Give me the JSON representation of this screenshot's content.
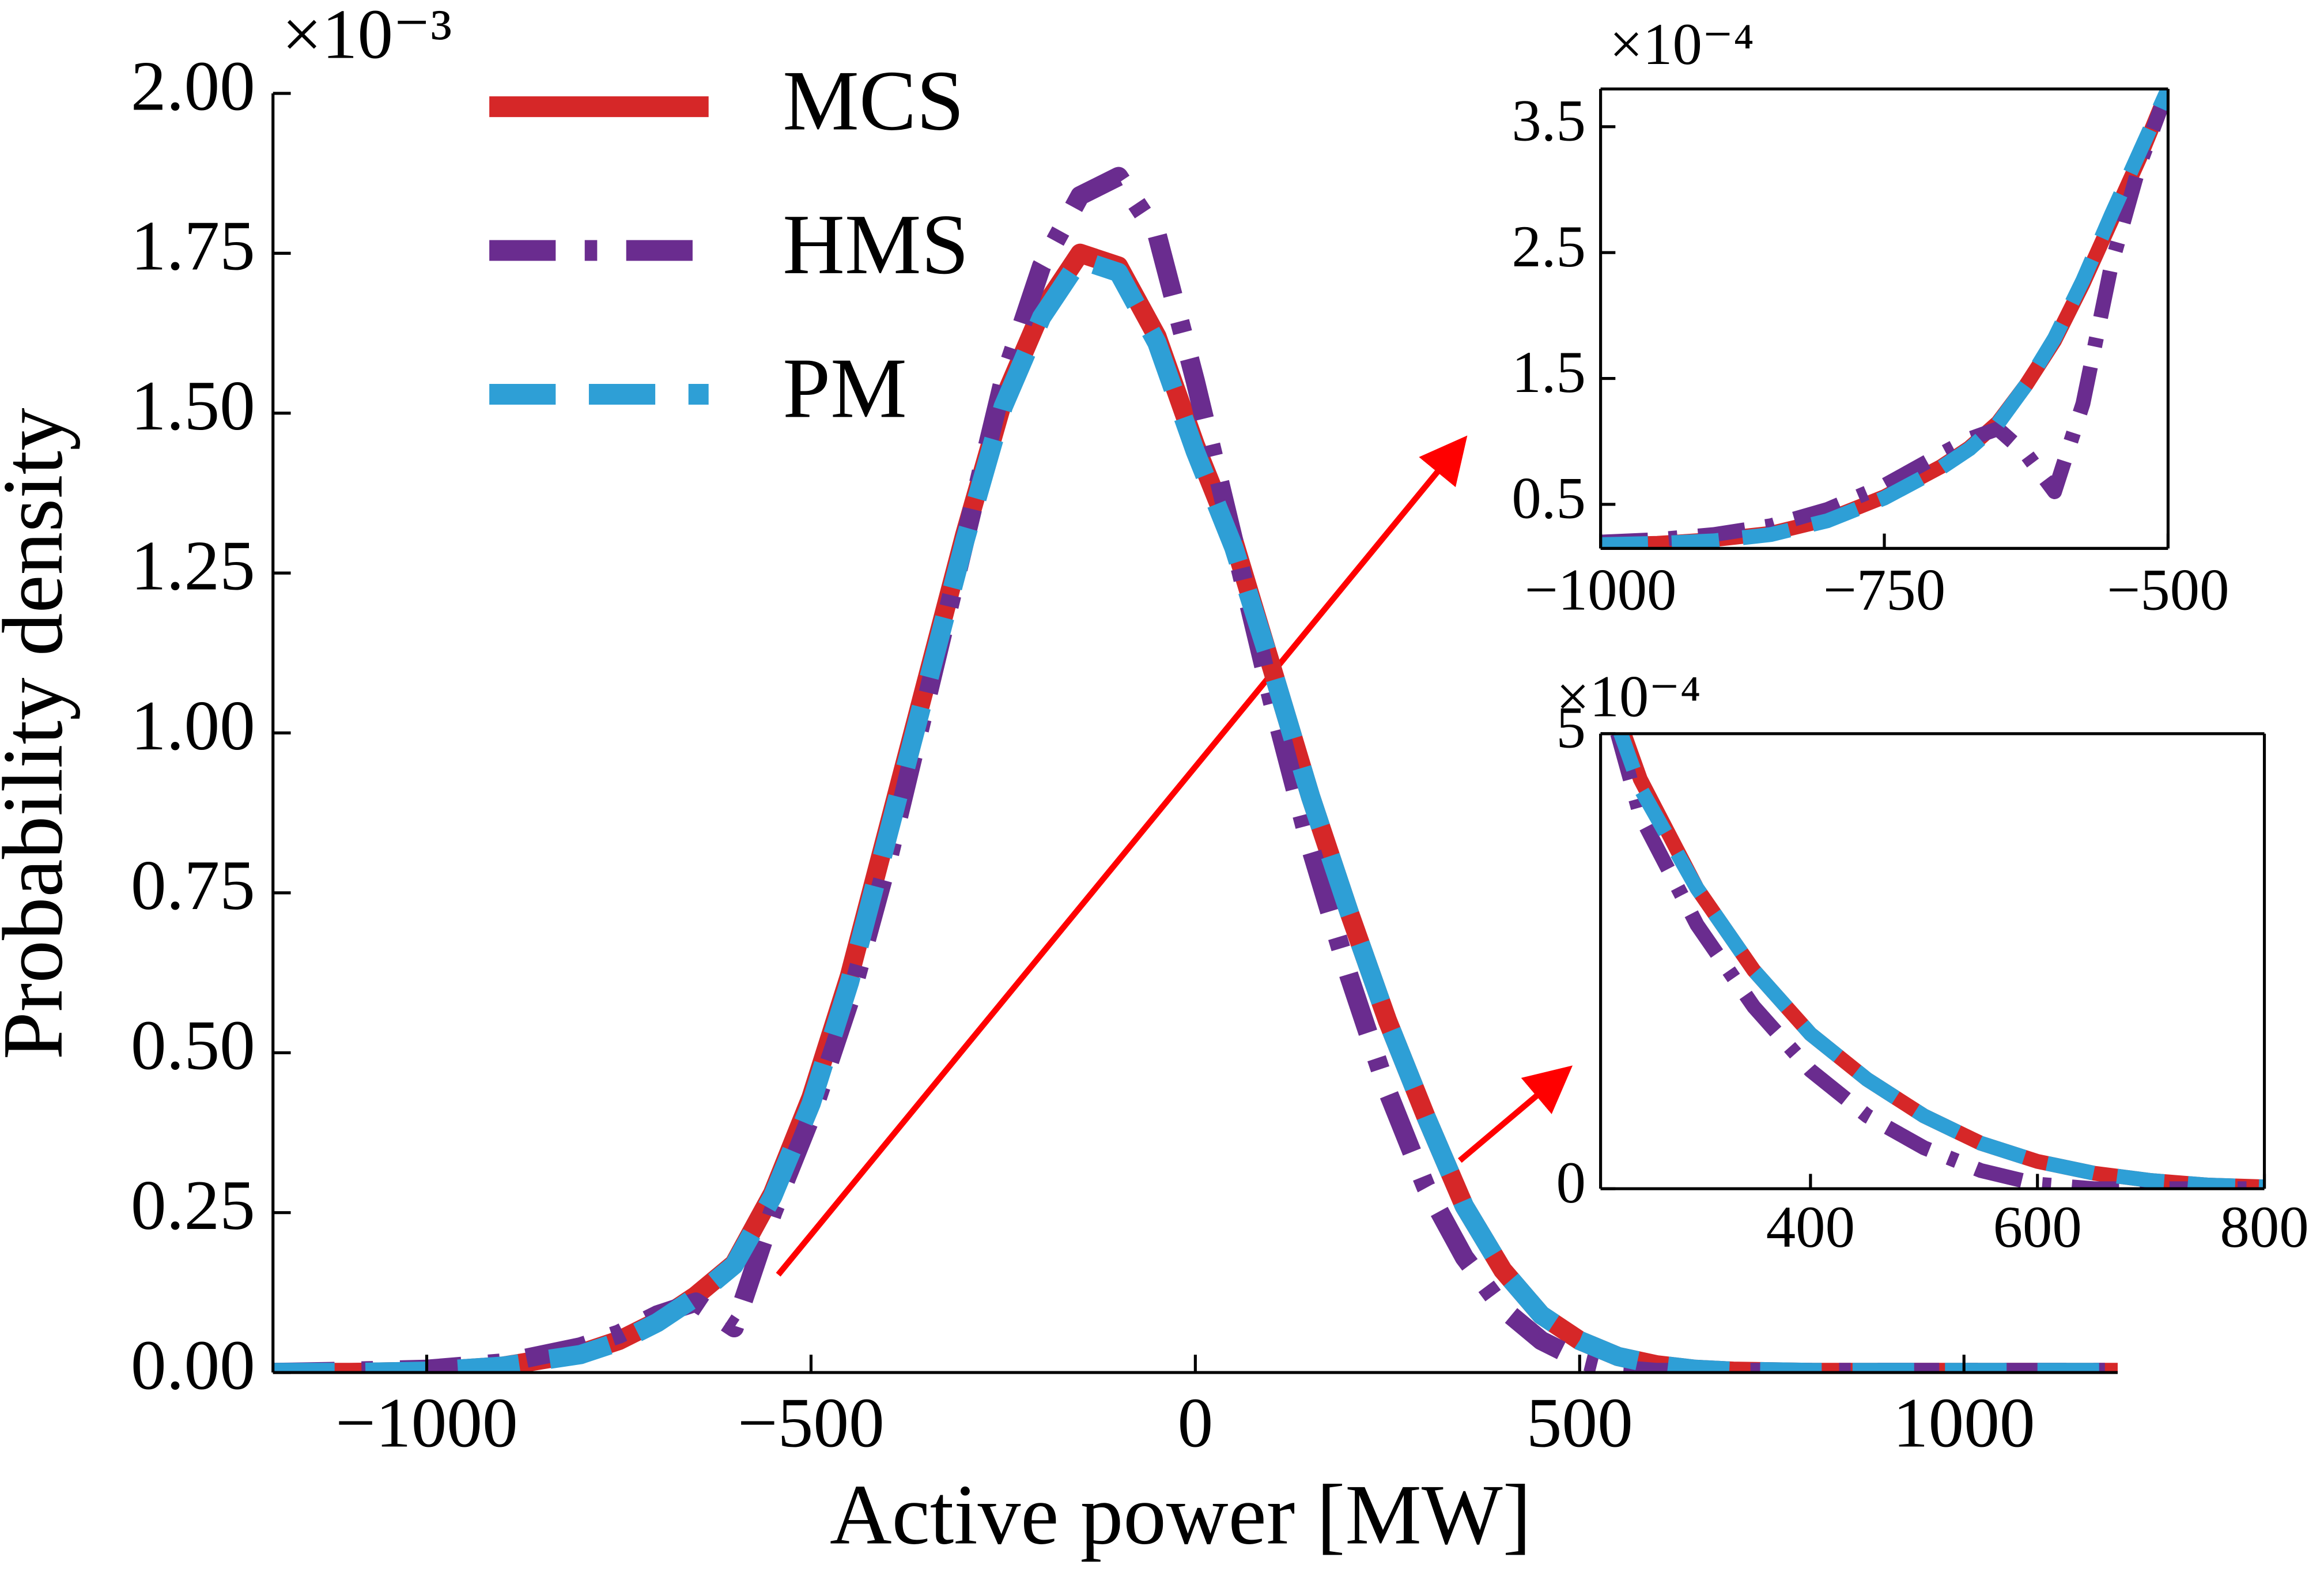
{
  "chart_data": [
    {
      "type": "line",
      "xlabel": "Active power [MW]",
      "ylabel": "Probability density",
      "offset_text": "×10⁻³",
      "legend": "upper left",
      "xlim": [
        -1200,
        1200
      ],
      "xticks": [
        {
          "value": -1000,
          "label": "−1000"
        },
        {
          "value": -500,
          "label": "−500"
        },
        0,
        500,
        1000
      ],
      "ylim": [
        0,
        2
      ],
      "yticks": [
        {
          "value": 0,
          "label": "0.00"
        },
        {
          "value": 0.25,
          "label": "0.25"
        },
        {
          "value": 0.5,
          "label": "0.50"
        },
        {
          "value": 0.75,
          "label": "0.75"
        },
        {
          "value": 1,
          "label": "1.00"
        },
        {
          "value": 1.25,
          "label": "1.25"
        },
        {
          "value": 1.5,
          "label": "1.50"
        },
        {
          "value": 1.75,
          "label": "1.75"
        },
        {
          "value": 2,
          "label": "2.00"
        }
      ],
      "x": [
        -1200,
        -1100,
        -1000,
        -900,
        -800,
        -750,
        -700,
        -650,
        -600,
        -550,
        -500,
        -450,
        -400,
        -350,
        -300,
        -250,
        -200,
        -150,
        -100,
        -50,
        0,
        50,
        100,
        150,
        200,
        250,
        300,
        350,
        400,
        450,
        500,
        550,
        600,
        650,
        700,
        800,
        900,
        1000,
        1100,
        1200
      ],
      "series": [
        {
          "name": "MCS",
          "color": "#d62728",
          "linestyle": "solid",
          "values": [
            0,
            0,
            0.002,
            0.01,
            0.03,
            0.05,
            0.08,
            0.12,
            0.17,
            0.28,
            0.43,
            0.62,
            0.85,
            1.08,
            1.31,
            1.52,
            1.66,
            1.75,
            1.73,
            1.62,
            1.45,
            1.3,
            1.1,
            0.9,
            0.72,
            0.55,
            0.4,
            0.26,
            0.16,
            0.09,
            0.05,
            0.025,
            0.012,
            0.005,
            0.002,
            0,
            0,
            0,
            0,
            0
          ]
        },
        {
          "name": "HMS",
          "color": "#6a2c8f",
          "linestyle": "dashdot",
          "values": [
            0,
            0.002,
            0.005,
            0.015,
            0.04,
            0.06,
            0.09,
            0.11,
            0.07,
            0.25,
            0.4,
            0.58,
            0.8,
            1.05,
            1.3,
            1.55,
            1.73,
            1.84,
            1.87,
            1.78,
            1.55,
            1.3,
            1.05,
            0.82,
            0.62,
            0.44,
            0.29,
            0.18,
            0.1,
            0.05,
            0.02,
            0.005,
            0,
            0,
            0,
            0,
            0,
            0,
            0,
            0
          ]
        },
        {
          "name": "PM",
          "color": "#2e9fd6",
          "linestyle": "dashed",
          "values": [
            0,
            0,
            0.002,
            0.01,
            0.028,
            0.048,
            0.078,
            0.118,
            0.168,
            0.275,
            0.42,
            0.61,
            0.84,
            1.07,
            1.3,
            1.51,
            1.65,
            1.74,
            1.72,
            1.61,
            1.44,
            1.29,
            1.1,
            0.9,
            0.72,
            0.55,
            0.4,
            0.26,
            0.16,
            0.09,
            0.05,
            0.025,
            0.012,
            0.005,
            0.002,
            0,
            0,
            0,
            0,
            0
          ]
        }
      ]
    },
    {
      "type": "line",
      "offset_text": "×10⁻⁴",
      "xlim": [
        -1000,
        -500
      ],
      "xticks": [
        {
          "value": -1000,
          "label": "−1000"
        },
        {
          "value": -750,
          "label": "−750"
        },
        {
          "value": -500,
          "label": "−500"
        }
      ],
      "ylim": [
        0.15,
        3.8
      ],
      "yticks": [
        0.5,
        1.5,
        2.5,
        3.5
      ],
      "x": [
        -1000,
        -950,
        -900,
        -850,
        -800,
        -750,
        -700,
        -675,
        -650,
        -625,
        -600,
        -575,
        -550,
        -525,
        -500
      ],
      "series": [
        {
          "name": "MCS",
          "color": "#d62728",
          "linestyle": "solid",
          "values": [
            0.18,
            0.19,
            0.22,
            0.27,
            0.38,
            0.56,
            0.8,
            0.95,
            1.15,
            1.45,
            1.8,
            2.25,
            2.75,
            3.25,
            3.8
          ]
        },
        {
          "name": "HMS",
          "color": "#6a2c8f",
          "linestyle": "dashdot",
          "values": [
            0.2,
            0.22,
            0.26,
            0.33,
            0.46,
            0.65,
            0.9,
            1.02,
            1.1,
            0.9,
            0.6,
            1.3,
            2.4,
            3.2,
            3.8
          ]
        },
        {
          "name": "PM",
          "color": "#2e9fd6",
          "linestyle": "dashed",
          "values": [
            0.18,
            0.19,
            0.21,
            0.26,
            0.37,
            0.55,
            0.79,
            0.94,
            1.14,
            1.45,
            1.82,
            2.28,
            2.8,
            3.3,
            3.8
          ]
        }
      ]
    },
    {
      "type": "line",
      "offset_text": "×10⁻⁴",
      "xlim": [
        215,
        800
      ],
      "xticks": [
        400,
        600,
        800
      ],
      "ylim": [
        0,
        5
      ],
      "yticks": [
        0,
        5
      ],
      "x": [
        230,
        250,
        300,
        350,
        400,
        450,
        500,
        550,
        600,
        650,
        700,
        750,
        800
      ],
      "series": [
        {
          "name": "MCS",
          "color": "#d62728",
          "linestyle": "solid",
          "values": [
            5.2,
            4.5,
            3.3,
            2.4,
            1.7,
            1.2,
            0.8,
            0.5,
            0.3,
            0.17,
            0.09,
            0.04,
            0.02
          ]
        },
        {
          "name": "HMS",
          "color": "#6a2c8f",
          "linestyle": "dashdot",
          "values": [
            5.0,
            4.1,
            2.9,
            2.0,
            1.3,
            0.8,
            0.45,
            0.2,
            0.05,
            0,
            0,
            0,
            0
          ]
        },
        {
          "name": "PM",
          "color": "#2e9fd6",
          "linestyle": "dashed",
          "values": [
            5.1,
            4.4,
            3.3,
            2.4,
            1.7,
            1.2,
            0.8,
            0.5,
            0.3,
            0.17,
            0.09,
            0.04,
            0.02
          ]
        }
      ]
    }
  ]
}
